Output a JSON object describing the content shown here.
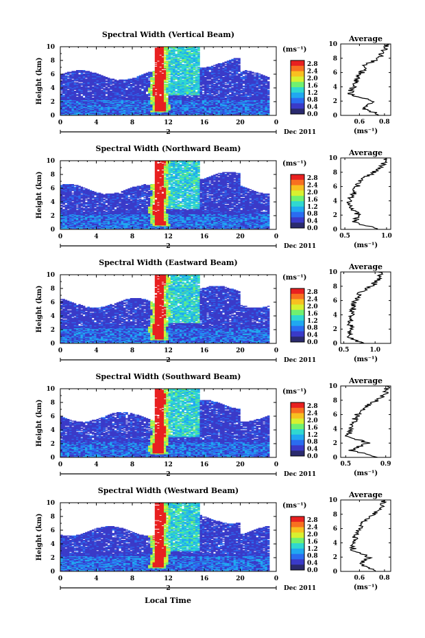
{
  "figure": {
    "xlabel": "Local Time",
    "date_label": "Dec 2011",
    "day_label": "2",
    "ylabel": "Height (km)",
    "colorbar_unit": "(ms⁻¹)",
    "colorbar_ticks": [
      "2.8",
      "2.4",
      "2.0",
      "1.6",
      "1.2",
      "0.8",
      "0.4",
      "0.0"
    ],
    "colormap": [
      "#2a2a6e",
      "#3a3ac8",
      "#2a6cf0",
      "#20a8f0",
      "#30d8d0",
      "#70f070",
      "#d8f030",
      "#f8c020",
      "#f87020",
      "#e82020"
    ],
    "avg_title": "Average",
    "avg_unit": "(ms⁻¹)"
  },
  "chart_data": [
    {
      "type": "heatmap",
      "title": "Spectral Width (Vertical Beam)",
      "x_ticks": [
        "0",
        "4",
        "8",
        "12",
        "16",
        "20",
        "0"
      ],
      "xlim": [
        0,
        24
      ],
      "ylim": [
        0,
        10
      ],
      "y_ticks": [
        "0",
        "2",
        "4",
        "6",
        "8",
        "10"
      ],
      "clim": [
        0,
        3.0
      ],
      "profile": {
        "xlim": [
          0.45,
          0.85
        ],
        "x_ticks": [
          "0.6",
          "0.8"
        ],
        "tick_values": [
          0.6,
          0.8
        ],
        "heights": [
          0,
          1,
          2,
          3,
          4,
          5,
          6,
          7,
          8,
          9,
          10
        ],
        "values": [
          0.78,
          0.62,
          0.7,
          0.52,
          0.55,
          0.58,
          0.62,
          0.65,
          0.75,
          0.8,
          0.82
        ]
      }
    },
    {
      "type": "heatmap",
      "title": "Spectral Width (Northward Beam)",
      "x_ticks": [
        "0",
        "4",
        "8",
        "12",
        "16",
        "20",
        "0"
      ],
      "xlim": [
        0,
        24
      ],
      "ylim": [
        0,
        10
      ],
      "y_ticks": [
        "0",
        "2",
        "4",
        "6",
        "8",
        "10"
      ],
      "clim": [
        0,
        3.0
      ],
      "profile": {
        "xlim": [
          0.45,
          1.05
        ],
        "x_ticks": [
          "0.5",
          "1.0"
        ],
        "tick_values": [
          0.5,
          1.0
        ],
        "heights": [
          0,
          1,
          2,
          3,
          4,
          5,
          6,
          7,
          8,
          9,
          10
        ],
        "values": [
          0.92,
          0.62,
          0.66,
          0.58,
          0.55,
          0.6,
          0.64,
          0.7,
          0.85,
          0.95,
          0.98
        ]
      }
    },
    {
      "type": "heatmap",
      "title": "Spectral Width (Eastward Beam)",
      "x_ticks": [
        "0",
        "4",
        "8",
        "12",
        "16",
        "20",
        "0"
      ],
      "xlim": [
        0,
        24
      ],
      "ylim": [
        0,
        10
      ],
      "y_ticks": [
        "0",
        "2",
        "4",
        "6",
        "8",
        "10"
      ],
      "clim": [
        0,
        3.0
      ],
      "profile": {
        "xlim": [
          0.45,
          1.25
        ],
        "x_ticks": [
          "0.5",
          "1.0"
        ],
        "tick_values": [
          0.5,
          1.0
        ],
        "heights": [
          0,
          1,
          2,
          3,
          4,
          5,
          6,
          7,
          8,
          9,
          10
        ],
        "values": [
          0.8,
          0.58,
          0.62,
          0.6,
          0.62,
          0.65,
          0.68,
          0.75,
          0.95,
          1.05,
          1.1
        ]
      }
    },
    {
      "type": "heatmap",
      "title": "Spectral Width (Southward Beam)",
      "x_ticks": [
        "0",
        "4",
        "8",
        "12",
        "16",
        "20",
        "0"
      ],
      "xlim": [
        0,
        24
      ],
      "ylim": [
        0,
        10
      ],
      "y_ticks": [
        "0",
        "2",
        "4",
        "6",
        "8",
        "10"
      ],
      "clim": [
        0,
        3.0
      ],
      "profile": {
        "xlim": [
          0.45,
          0.95
        ],
        "x_ticks": [
          "0.5",
          "0.9"
        ],
        "tick_values": [
          0.5,
          0.9
        ],
        "heights": [
          0,
          1,
          2,
          3,
          4,
          5,
          6,
          7,
          8,
          9,
          10
        ],
        "values": [
          0.85,
          0.55,
          0.72,
          0.52,
          0.55,
          0.58,
          0.62,
          0.68,
          0.82,
          0.9,
          0.92
        ]
      }
    },
    {
      "type": "heatmap",
      "title": "Spectral Width (Westward Beam)",
      "x_ticks": [
        "0",
        "4",
        "8",
        "12",
        "16",
        "20",
        "0"
      ],
      "xlim": [
        0,
        24
      ],
      "ylim": [
        0,
        10
      ],
      "y_ticks": [
        "0",
        "2",
        "4",
        "6",
        "8",
        "10"
      ],
      "clim": [
        0,
        3.0
      ],
      "profile": {
        "xlim": [
          0.45,
          0.85
        ],
        "x_ticks": [
          "0.6",
          "0.8"
        ],
        "tick_values": [
          0.6,
          0.8
        ],
        "heights": [
          0,
          1,
          2,
          3,
          4,
          5,
          6,
          7,
          8,
          9,
          10
        ],
        "values": [
          0.75,
          0.6,
          0.68,
          0.55,
          0.55,
          0.57,
          0.6,
          0.64,
          0.72,
          0.78,
          0.8
        ]
      }
    }
  ]
}
